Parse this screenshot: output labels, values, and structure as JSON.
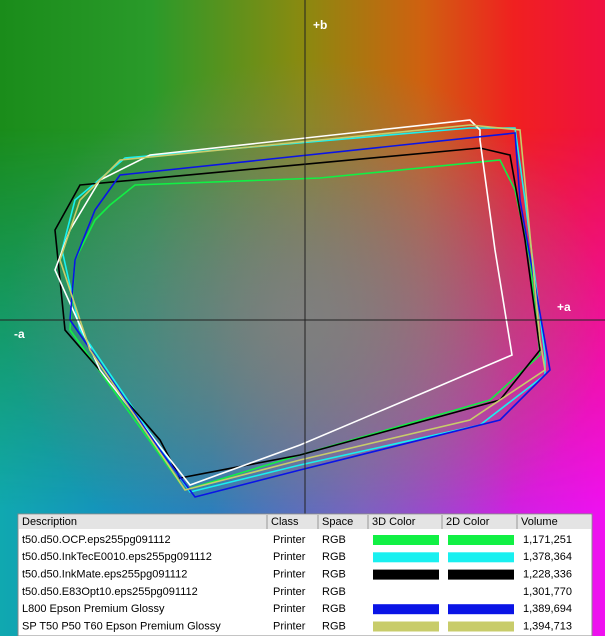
{
  "plot": {
    "label_b_plus": "+b",
    "label_a_plus": "+a",
    "label_a_minus": "-a"
  },
  "table": {
    "headers": [
      "Description",
      "Class",
      "Space",
      "3D Color",
      "2D Color",
      "Volume"
    ],
    "rows": [
      {
        "description": "t50.d50.OCP.eps255pg091112",
        "class": "Printer",
        "space": "RGB",
        "color": "#11f044",
        "volume": "1,171,251"
      },
      {
        "description": "t50.d50.InkTecE0010.eps255pg091112",
        "class": "Printer",
        "space": "RGB",
        "color": "#19f0f0",
        "volume": "1,378,364"
      },
      {
        "description": "t50.d50.InkMate.eps255pg091112",
        "class": "Printer",
        "space": "RGB",
        "color": "#000000",
        "volume": "1,228,336"
      },
      {
        "description": "t50.d50.E83Opt10.eps255pg091112",
        "class": "Printer",
        "space": "RGB",
        "color": "#ffffff",
        "volume": "1,301,770"
      },
      {
        "description": "L800 Epson Premium Glossy",
        "class": "Printer",
        "space": "RGB",
        "color": "#0a14e6",
        "volume": "1,389,694"
      },
      {
        "description": "SP T50 P50 T60 Epson Premium Glossy",
        "class": "Printer",
        "space": "RGB",
        "color": "#c8cc6a",
        "volume": "1,394,713"
      }
    ]
  }
}
